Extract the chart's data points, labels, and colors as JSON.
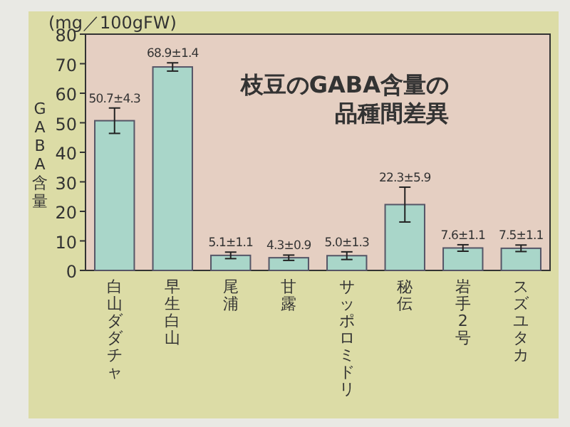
{
  "chart_data": {
    "type": "bar",
    "title": "枝豆のGABA含量の品種間差異",
    "ylabel": "GABA含量",
    "annotations": [
      "(mg／100gFW)"
    ],
    "categories": [
      "白山ダダチャ",
      "早生白山",
      "尾浦",
      "甘露",
      "サッポロミドリ",
      "秘伝",
      "岩手2号",
      "スズユタカ"
    ],
    "values": [
      50.7,
      68.9,
      5.1,
      4.3,
      5.0,
      22.3,
      7.6,
      7.5
    ],
    "errors": [
      4.3,
      1.4,
      1.1,
      0.9,
      1.3,
      5.9,
      1.1,
      1.1
    ],
    "value_labels": [
      "50.7±4.3",
      "68.9±1.4",
      "5.1±1.1",
      "4.3±0.9",
      "5.0±1.3",
      "22.3±5.9",
      "7.6±1.1",
      "7.5±1.1"
    ],
    "color": "#a9d6c9",
    "ylim": [
      0,
      80
    ],
    "yticks": [
      0,
      10,
      20,
      30,
      40,
      50,
      60,
      70,
      80
    ],
    "grid": false
  }
}
